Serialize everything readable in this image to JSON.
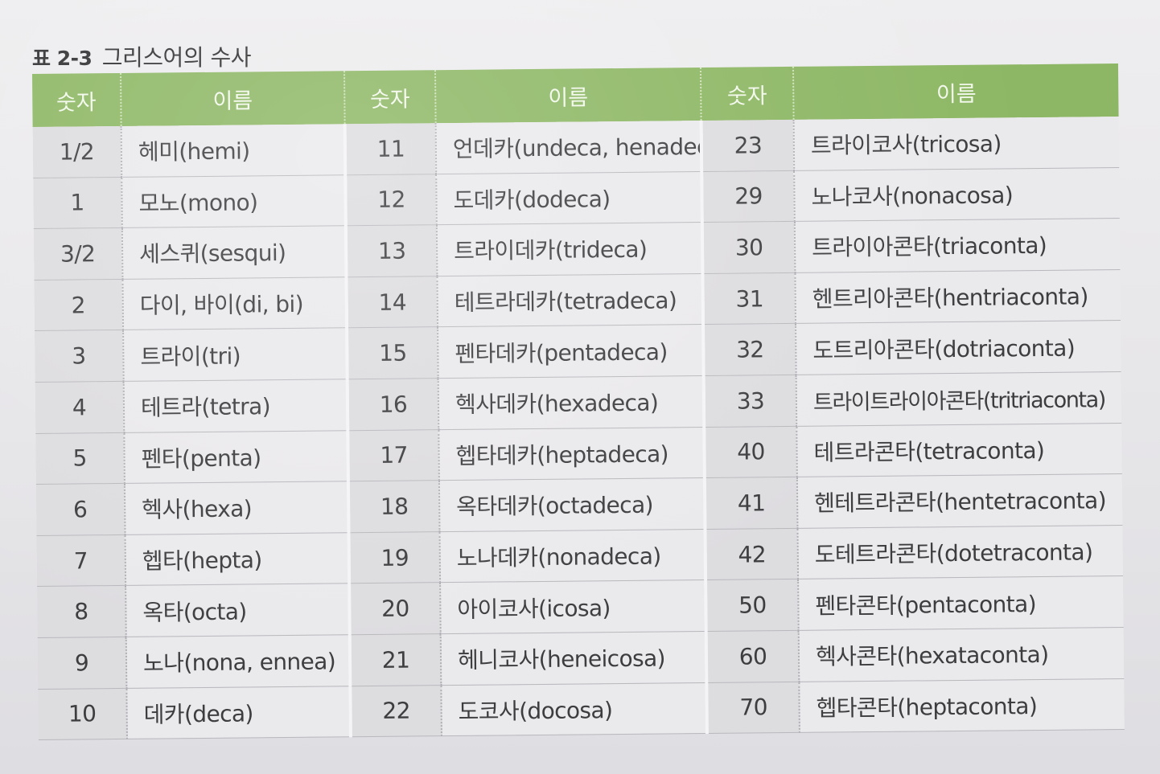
{
  "caption": {
    "label": "표 2-3",
    "title": "그리스어의 수사"
  },
  "headers": [
    "숫자",
    "이름",
    "숫자",
    "이름",
    "숫자",
    "이름"
  ],
  "rows": [
    [
      {
        "num": "1/2",
        "name": "헤미(hemi)"
      },
      {
        "num": "11",
        "name": "언데카(undeca, henadeca)"
      },
      {
        "num": "23",
        "name": "트라이코사(tricosa)"
      }
    ],
    [
      {
        "num": "1",
        "name": "모노(mono)"
      },
      {
        "num": "12",
        "name": "도데카(dodeca)"
      },
      {
        "num": "29",
        "name": "노나코사(nonacosa)"
      }
    ],
    [
      {
        "num": "3/2",
        "name": "세스퀴(sesqui)"
      },
      {
        "num": "13",
        "name": "트라이데카(trideca)"
      },
      {
        "num": "30",
        "name": "트라이아콘타(triaconta)"
      }
    ],
    [
      {
        "num": "2",
        "name": "다이, 바이(di, bi)"
      },
      {
        "num": "14",
        "name": "테트라데카(tetradeca)"
      },
      {
        "num": "31",
        "name": "헨트리아콘타(hentriaconta)"
      }
    ],
    [
      {
        "num": "3",
        "name": "트라이(tri)"
      },
      {
        "num": "15",
        "name": "펜타데카(pentadeca)"
      },
      {
        "num": "32",
        "name": "도트리아콘타(dotriaconta)"
      }
    ],
    [
      {
        "num": "4",
        "name": "테트라(tetra)"
      },
      {
        "num": "16",
        "name": "헥사데카(hexadeca)"
      },
      {
        "num": "33",
        "name": "트라이트라이아콘타(tritriaconta)"
      }
    ],
    [
      {
        "num": "5",
        "name": "펜타(penta)"
      },
      {
        "num": "17",
        "name": "헵타데카(heptadeca)"
      },
      {
        "num": "40",
        "name": "테트라콘타(tetraconta)"
      }
    ],
    [
      {
        "num": "6",
        "name": "헥사(hexa)"
      },
      {
        "num": "18",
        "name": "옥타데카(octadeca)"
      },
      {
        "num": "41",
        "name": "헨테트라콘타(hentetraconta)"
      }
    ],
    [
      {
        "num": "7",
        "name": "헵타(hepta)"
      },
      {
        "num": "19",
        "name": "노나데카(nonadeca)"
      },
      {
        "num": "42",
        "name": "도테트라콘타(dotetraconta)"
      }
    ],
    [
      {
        "num": "8",
        "name": "옥타(octa)"
      },
      {
        "num": "20",
        "name": "아이코사(icosa)"
      },
      {
        "num": "50",
        "name": "펜타콘타(pentaconta)"
      }
    ],
    [
      {
        "num": "9",
        "name": "노나(nona, ennea)"
      },
      {
        "num": "21",
        "name": "헤니코사(heneicosa)"
      },
      {
        "num": "60",
        "name": "헥사콘타(hexataconta)"
      }
    ],
    [
      {
        "num": "10",
        "name": "데카(deca)"
      },
      {
        "num": "22",
        "name": "도코사(docosa)"
      },
      {
        "num": "70",
        "name": "헵타콘타(heptaconta)"
      }
    ]
  ]
}
